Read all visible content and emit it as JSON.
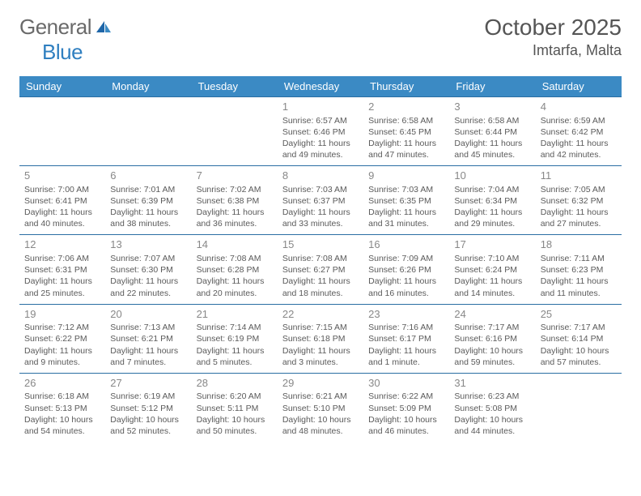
{
  "logo": {
    "text1": "General",
    "text2": "Blue"
  },
  "title": "October 2025",
  "location": "Imtarfa, Malta",
  "colors": {
    "header_bg": "#3b8ac4",
    "header_text": "#ffffff",
    "row_border": "#2a6ea3",
    "text": "#5a5a5a",
    "daynum": "#888888",
    "logo_gray": "#6a6a6a",
    "logo_blue": "#2f7fc0"
  },
  "day_headers": [
    "Sunday",
    "Monday",
    "Tuesday",
    "Wednesday",
    "Thursday",
    "Friday",
    "Saturday"
  ],
  "weeks": [
    [
      null,
      null,
      null,
      {
        "n": "1",
        "sunrise": "6:57 AM",
        "sunset": "6:46 PM",
        "daylight": "11 hours and 49 minutes."
      },
      {
        "n": "2",
        "sunrise": "6:58 AM",
        "sunset": "6:45 PM",
        "daylight": "11 hours and 47 minutes."
      },
      {
        "n": "3",
        "sunrise": "6:58 AM",
        "sunset": "6:44 PM",
        "daylight": "11 hours and 45 minutes."
      },
      {
        "n": "4",
        "sunrise": "6:59 AM",
        "sunset": "6:42 PM",
        "daylight": "11 hours and 42 minutes."
      }
    ],
    [
      {
        "n": "5",
        "sunrise": "7:00 AM",
        "sunset": "6:41 PM",
        "daylight": "11 hours and 40 minutes."
      },
      {
        "n": "6",
        "sunrise": "7:01 AM",
        "sunset": "6:39 PM",
        "daylight": "11 hours and 38 minutes."
      },
      {
        "n": "7",
        "sunrise": "7:02 AM",
        "sunset": "6:38 PM",
        "daylight": "11 hours and 36 minutes."
      },
      {
        "n": "8",
        "sunrise": "7:03 AM",
        "sunset": "6:37 PM",
        "daylight": "11 hours and 33 minutes."
      },
      {
        "n": "9",
        "sunrise": "7:03 AM",
        "sunset": "6:35 PM",
        "daylight": "11 hours and 31 minutes."
      },
      {
        "n": "10",
        "sunrise": "7:04 AM",
        "sunset": "6:34 PM",
        "daylight": "11 hours and 29 minutes."
      },
      {
        "n": "11",
        "sunrise": "7:05 AM",
        "sunset": "6:32 PM",
        "daylight": "11 hours and 27 minutes."
      }
    ],
    [
      {
        "n": "12",
        "sunrise": "7:06 AM",
        "sunset": "6:31 PM",
        "daylight": "11 hours and 25 minutes."
      },
      {
        "n": "13",
        "sunrise": "7:07 AM",
        "sunset": "6:30 PM",
        "daylight": "11 hours and 22 minutes."
      },
      {
        "n": "14",
        "sunrise": "7:08 AM",
        "sunset": "6:28 PM",
        "daylight": "11 hours and 20 minutes."
      },
      {
        "n": "15",
        "sunrise": "7:08 AM",
        "sunset": "6:27 PM",
        "daylight": "11 hours and 18 minutes."
      },
      {
        "n": "16",
        "sunrise": "7:09 AM",
        "sunset": "6:26 PM",
        "daylight": "11 hours and 16 minutes."
      },
      {
        "n": "17",
        "sunrise": "7:10 AM",
        "sunset": "6:24 PM",
        "daylight": "11 hours and 14 minutes."
      },
      {
        "n": "18",
        "sunrise": "7:11 AM",
        "sunset": "6:23 PM",
        "daylight": "11 hours and 11 minutes."
      }
    ],
    [
      {
        "n": "19",
        "sunrise": "7:12 AM",
        "sunset": "6:22 PM",
        "daylight": "11 hours and 9 minutes."
      },
      {
        "n": "20",
        "sunrise": "7:13 AM",
        "sunset": "6:21 PM",
        "daylight": "11 hours and 7 minutes."
      },
      {
        "n": "21",
        "sunrise": "7:14 AM",
        "sunset": "6:19 PM",
        "daylight": "11 hours and 5 minutes."
      },
      {
        "n": "22",
        "sunrise": "7:15 AM",
        "sunset": "6:18 PM",
        "daylight": "11 hours and 3 minutes."
      },
      {
        "n": "23",
        "sunrise": "7:16 AM",
        "sunset": "6:17 PM",
        "daylight": "11 hours and 1 minute."
      },
      {
        "n": "24",
        "sunrise": "7:17 AM",
        "sunset": "6:16 PM",
        "daylight": "10 hours and 59 minutes."
      },
      {
        "n": "25",
        "sunrise": "7:17 AM",
        "sunset": "6:14 PM",
        "daylight": "10 hours and 57 minutes."
      }
    ],
    [
      {
        "n": "26",
        "sunrise": "6:18 AM",
        "sunset": "5:13 PM",
        "daylight": "10 hours and 54 minutes."
      },
      {
        "n": "27",
        "sunrise": "6:19 AM",
        "sunset": "5:12 PM",
        "daylight": "10 hours and 52 minutes."
      },
      {
        "n": "28",
        "sunrise": "6:20 AM",
        "sunset": "5:11 PM",
        "daylight": "10 hours and 50 minutes."
      },
      {
        "n": "29",
        "sunrise": "6:21 AM",
        "sunset": "5:10 PM",
        "daylight": "10 hours and 48 minutes."
      },
      {
        "n": "30",
        "sunrise": "6:22 AM",
        "sunset": "5:09 PM",
        "daylight": "10 hours and 46 minutes."
      },
      {
        "n": "31",
        "sunrise": "6:23 AM",
        "sunset": "5:08 PM",
        "daylight": "10 hours and 44 minutes."
      },
      null
    ]
  ],
  "labels": {
    "sunrise": "Sunrise:",
    "sunset": "Sunset:",
    "daylight": "Daylight:"
  }
}
